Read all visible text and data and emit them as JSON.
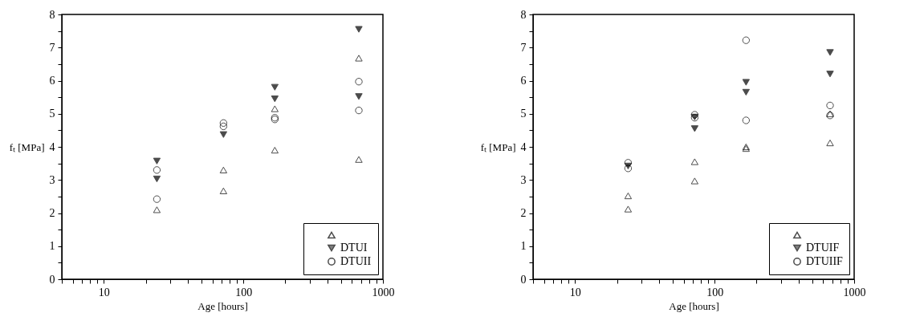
{
  "chart_data": [
    {
      "type": "scatter",
      "xlabel": "Age [hours]",
      "ylabel": "fₜ [MPa]",
      "log": "x",
      "xlim": [
        5,
        1000
      ],
      "ylim": [
        0,
        8
      ],
      "xticks": [
        {
          "value": 5,
          "label": null
        },
        {
          "value": 6,
          "label": null
        },
        {
          "value": 7,
          "label": null
        },
        {
          "value": 8,
          "label": null
        },
        {
          "value": 9,
          "label": null
        },
        10,
        {
          "value": 20,
          "label": null
        },
        {
          "value": 30,
          "label": null
        },
        {
          "value": 40,
          "label": null
        },
        {
          "value": 50,
          "label": null
        },
        {
          "value": 60,
          "label": null
        },
        {
          "value": 70,
          "label": null
        },
        {
          "value": 80,
          "label": null
        },
        {
          "value": 90,
          "label": null
        },
        100,
        {
          "value": 200,
          "label": null
        },
        {
          "value": 300,
          "label": null
        },
        {
          "value": 400,
          "label": null
        },
        {
          "value": 500,
          "label": null
        },
        {
          "value": 600,
          "label": null
        },
        {
          "value": 700,
          "label": null
        },
        {
          "value": 800,
          "label": null
        },
        {
          "value": 900,
          "label": null
        },
        1000
      ],
      "yticks": [
        0,
        {
          "value": 0.5,
          "label": null
        },
        1,
        {
          "value": 1.5,
          "label": null
        },
        2,
        {
          "value": 2.5,
          "label": null
        },
        3,
        {
          "value": 3.5,
          "label": null
        },
        4,
        {
          "value": 4.5,
          "label": null
        },
        5,
        {
          "value": 5.5,
          "label": null
        },
        6,
        {
          "value": 6.5,
          "label": null
        },
        7,
        {
          "value": 7.5,
          "label": null
        },
        8
      ],
      "grid": false,
      "legend": "bottom right",
      "series": [
        {
          "color": "#000000",
          "marker": "triangle",
          "x": [
            24,
            72,
            72,
            168,
            168,
            672,
            672
          ],
          "values": [
            2.1,
            3.3,
            2.67,
            5.15,
            3.9,
            6.68,
            3.62
          ]
        },
        {
          "name": "DTUI",
          "color": "#000000",
          "marker": "triangle-down",
          "x": [
            24,
            24,
            72,
            168,
            168,
            672,
            672
          ],
          "values": [
            3.57,
            3.03,
            4.37,
            5.8,
            5.45,
            7.55,
            5.52
          ]
        },
        {
          "name": "DTUII",
          "color": "#000000",
          "marker": "circle",
          "x": [
            24,
            24,
            72,
            72,
            168,
            168,
            672,
            672
          ],
          "values": [
            3.3,
            2.42,
            4.72,
            4.62,
            4.88,
            4.83,
            5.97,
            5.1
          ]
        }
      ]
    },
    {
      "type": "scatter",
      "xlabel": "Age [hours]",
      "ylabel": "fₜ [MPa]",
      "log": "x",
      "xlim": [
        5,
        1000
      ],
      "ylim": [
        0,
        8
      ],
      "xticks": [
        {
          "value": 5,
          "label": null
        },
        {
          "value": 6,
          "label": null
        },
        {
          "value": 7,
          "label": null
        },
        {
          "value": 8,
          "label": null
        },
        {
          "value": 9,
          "label": null
        },
        10,
        {
          "value": 20,
          "label": null
        },
        {
          "value": 30,
          "label": null
        },
        {
          "value": 40,
          "label": null
        },
        {
          "value": 50,
          "label": null
        },
        {
          "value": 60,
          "label": null
        },
        {
          "value": 70,
          "label": null
        },
        {
          "value": 80,
          "label": null
        },
        {
          "value": 90,
          "label": null
        },
        100,
        {
          "value": 200,
          "label": null
        },
        {
          "value": 300,
          "label": null
        },
        {
          "value": 400,
          "label": null
        },
        {
          "value": 500,
          "label": null
        },
        {
          "value": 600,
          "label": null
        },
        {
          "value": 700,
          "label": null
        },
        {
          "value": 800,
          "label": null
        },
        {
          "value": 900,
          "label": null
        },
        1000
      ],
      "yticks": [
        0,
        {
          "value": 0.5,
          "label": null
        },
        1,
        {
          "value": 1.5,
          "label": null
        },
        2,
        {
          "value": 2.5,
          "label": null
        },
        3,
        {
          "value": 3.5,
          "label": null
        },
        4,
        {
          "value": 4.5,
          "label": null
        },
        5,
        {
          "value": 5.5,
          "label": null
        },
        6,
        {
          "value": 6.5,
          "label": null
        },
        7,
        {
          "value": 7.5,
          "label": null
        },
        8
      ],
      "grid": false,
      "legend": "bottom right",
      "series": [
        {
          "color": "#000000",
          "marker": "triangle",
          "x": [
            24,
            24,
            72,
            72,
            168,
            168,
            672,
            672
          ],
          "values": [
            2.52,
            2.12,
            3.55,
            2.97,
            4.0,
            3.95,
            5.0,
            4.12
          ]
        },
        {
          "name": "DTUIF",
          "color": "#000000",
          "marker": "triangle-down",
          "x": [
            24,
            72,
            72,
            168,
            168,
            672,
            672
          ],
          "values": [
            3.42,
            4.9,
            4.55,
            5.95,
            5.65,
            6.85,
            6.2
          ]
        },
        {
          "name": "DTUIIF",
          "color": "#000000",
          "marker": "circle",
          "x": [
            24,
            24,
            72,
            72,
            168,
            168,
            672,
            672
          ],
          "values": [
            3.52,
            3.35,
            4.97,
            4.88,
            7.22,
            4.8,
            5.25,
            4.95
          ]
        }
      ]
    }
  ]
}
